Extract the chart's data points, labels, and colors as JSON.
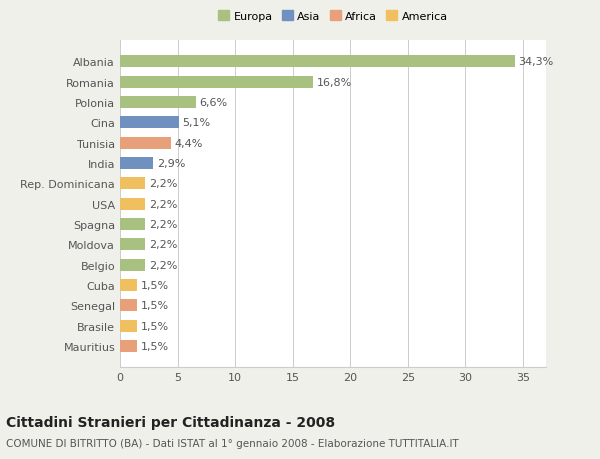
{
  "categories": [
    "Albania",
    "Romania",
    "Polonia",
    "Cina",
    "Tunisia",
    "India",
    "Rep. Dominicana",
    "USA",
    "Spagna",
    "Moldova",
    "Belgio",
    "Cuba",
    "Senegal",
    "Brasile",
    "Mauritius"
  ],
  "values": [
    34.3,
    16.8,
    6.6,
    5.1,
    4.4,
    2.9,
    2.2,
    2.2,
    2.2,
    2.2,
    2.2,
    1.5,
    1.5,
    1.5,
    1.5
  ],
  "labels": [
    "34,3%",
    "16,8%",
    "6,6%",
    "5,1%",
    "4,4%",
    "2,9%",
    "2,2%",
    "2,2%",
    "2,2%",
    "2,2%",
    "2,2%",
    "1,5%",
    "1,5%",
    "1,5%",
    "1,5%"
  ],
  "colors": [
    "#a8c080",
    "#a8c080",
    "#a8c080",
    "#7090c0",
    "#e8a07a",
    "#7090c0",
    "#f0c060",
    "#f0c060",
    "#a8c080",
    "#a8c080",
    "#a8c080",
    "#f0c060",
    "#e8a07a",
    "#f0c060",
    "#e8a07a"
  ],
  "legend_labels": [
    "Europa",
    "Asia",
    "Africa",
    "America"
  ],
  "legend_colors": [
    "#a8c080",
    "#7090c0",
    "#e8a07a",
    "#f0c060"
  ],
  "title": "Cittadini Stranieri per Cittadinanza - 2008",
  "subtitle": "COMUNE DI BITRITTO (BA) - Dati ISTAT al 1° gennaio 2008 - Elaborazione TUTTITALIA.IT",
  "xlim": [
    0,
    37
  ],
  "xticks": [
    0,
    5,
    10,
    15,
    20,
    25,
    30,
    35
  ],
  "background_color": "#f0f0eb",
  "bar_background": "#ffffff",
  "grid_color": "#cccccc",
  "text_color": "#555555",
  "label_fontsize": 8,
  "ytick_fontsize": 8,
  "xtick_fontsize": 8,
  "title_fontsize": 10,
  "subtitle_fontsize": 7.5,
  "bar_height": 0.6
}
